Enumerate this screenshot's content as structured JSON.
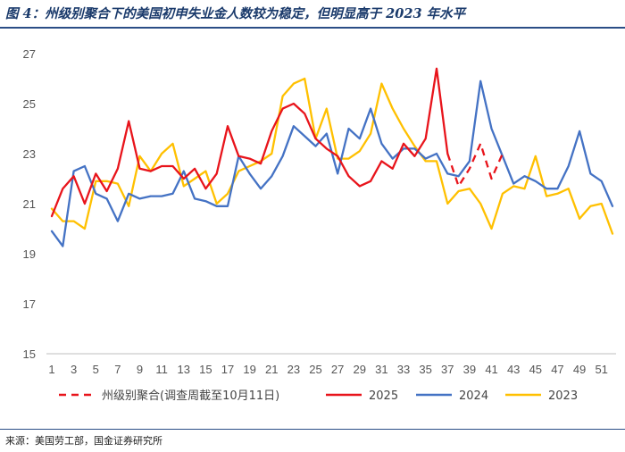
{
  "header": {
    "title": "图 4：州级别聚合下的美国初申失业金人数较为稳定，但明显高于 2023 年水平"
  },
  "footer": {
    "source": "来源：美国劳工部，国金证券研究所"
  },
  "chart_data": {
    "type": "line",
    "title": "",
    "xlabel": "",
    "ylabel": "",
    "ylim": [
      15,
      27
    ],
    "yticks": [
      15,
      17,
      19,
      21,
      23,
      25,
      27
    ],
    "xlim": [
      1,
      52
    ],
    "xticks": [
      1,
      3,
      5,
      7,
      9,
      11,
      13,
      15,
      17,
      19,
      21,
      23,
      25,
      27,
      29,
      31,
      33,
      35,
      37,
      39,
      41,
      43,
      45,
      47,
      49,
      51
    ],
    "grid": false,
    "legend": "bottom",
    "series": [
      {
        "name": "州级别聚合(调查周截至10月11日)",
        "color": "#e8141b",
        "style": "dashed",
        "x": [
          37,
          38,
          39,
          40,
          41,
          42
        ],
        "values": [
          23.0,
          21.7,
          22.4,
          23.4,
          22.0,
          23.0
        ]
      },
      {
        "name": "2025",
        "color": "#e8141b",
        "style": "solid",
        "x": [
          1,
          2,
          3,
          4,
          5,
          6,
          7,
          8,
          9,
          10,
          11,
          12,
          13,
          14,
          15,
          16,
          17,
          18,
          19,
          20,
          21,
          22,
          23,
          24,
          25,
          26,
          27,
          28,
          29,
          30,
          31,
          32,
          33,
          34,
          35,
          36,
          37
        ],
        "values": [
          20.5,
          21.6,
          22.1,
          21.0,
          22.2,
          21.5,
          22.4,
          24.3,
          22.4,
          22.3,
          22.5,
          22.5,
          22.0,
          22.4,
          21.6,
          22.2,
          24.1,
          22.9,
          22.8,
          22.6,
          23.9,
          24.8,
          25.0,
          24.6,
          23.6,
          23.2,
          22.9,
          22.1,
          21.7,
          21.9,
          22.7,
          22.4,
          23.4,
          22.9,
          23.6,
          26.4,
          23.0
        ]
      },
      {
        "name": "2024",
        "color": "#4472c4",
        "style": "solid",
        "x": [
          1,
          2,
          3,
          4,
          5,
          6,
          7,
          8,
          9,
          10,
          11,
          12,
          13,
          14,
          15,
          16,
          17,
          18,
          19,
          20,
          21,
          22,
          23,
          24,
          25,
          26,
          27,
          28,
          29,
          30,
          31,
          32,
          33,
          34,
          35,
          36,
          37,
          38,
          39,
          40,
          41,
          42,
          43,
          44,
          45,
          46,
          47,
          48,
          49,
          50,
          51,
          52
        ],
        "values": [
          19.9,
          19.3,
          22.3,
          22.5,
          21.4,
          21.2,
          20.3,
          21.4,
          21.2,
          21.3,
          21.3,
          21.4,
          22.3,
          21.2,
          21.1,
          20.9,
          20.9,
          22.9,
          22.2,
          21.6,
          22.1,
          22.9,
          24.1,
          23.7,
          23.3,
          23.8,
          22.2,
          24.0,
          23.6,
          24.8,
          23.4,
          22.8,
          23.2,
          23.2,
          22.8,
          23.0,
          22.2,
          22.1,
          22.7,
          25.9,
          24.0,
          22.9,
          21.8,
          22.1,
          21.9,
          21.6,
          21.6,
          22.5,
          23.9,
          22.2,
          21.9,
          20.9
        ]
      },
      {
        "name": "2023",
        "color": "#ffc000",
        "style": "solid",
        "x": [
          1,
          2,
          3,
          4,
          5,
          6,
          7,
          8,
          9,
          10,
          11,
          12,
          13,
          14,
          15,
          16,
          17,
          18,
          19,
          20,
          21,
          22,
          23,
          24,
          25,
          26,
          27,
          28,
          29,
          30,
          31,
          32,
          33,
          34,
          35,
          36,
          37,
          38,
          39,
          40,
          41,
          42,
          43,
          44,
          45,
          46,
          47,
          48,
          49,
          50,
          51,
          52
        ],
        "values": [
          20.8,
          20.3,
          20.3,
          20.0,
          21.9,
          21.9,
          21.8,
          20.9,
          22.9,
          22.3,
          23.0,
          23.4,
          21.7,
          22.0,
          22.3,
          21.0,
          21.4,
          22.3,
          22.5,
          22.7,
          23.0,
          25.3,
          25.8,
          26.0,
          23.6,
          24.8,
          22.8,
          22.8,
          23.1,
          23.8,
          25.8,
          24.8,
          24.0,
          23.3,
          22.7,
          22.7,
          21.0,
          21.5,
          21.6,
          21.0,
          20.0,
          21.4,
          21.7,
          21.6,
          22.9,
          21.3,
          21.4,
          21.6,
          20.4,
          20.9,
          21.0,
          19.8
        ]
      }
    ]
  }
}
